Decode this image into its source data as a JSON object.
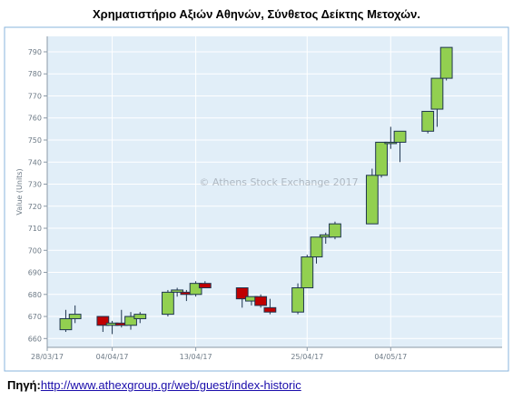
{
  "title": "Χρηματιστήριο Αξιών Αθηνών, Σύνθετος Δείκτης Μετοχών.",
  "source": {
    "label": "Πηγή:",
    "link_text": "http://www.athexgroup.gr/web/guest/index-historic"
  },
  "colors": {
    "up": "#92d050",
    "down": "#c00000",
    "stroke": "#1f3550",
    "plot_bg": "#e1eef8",
    "grid": "#ffffff"
  },
  "chart_data": {
    "type": "candlestick",
    "title": "",
    "xlabel": "",
    "ylabel": "Value (Units)",
    "watermark": "© Athens Stock Exchange 2017",
    "ylim": [
      656,
      797
    ],
    "yticks": [
      660,
      670,
      680,
      690,
      700,
      710,
      720,
      730,
      740,
      750,
      760,
      770,
      780,
      790
    ],
    "xlim": [
      "2017-03-28",
      "2017-05-16"
    ],
    "xticks": [
      {
        "date": "2017-03-28",
        "label": "28/03/17"
      },
      {
        "date": "2017-04-04",
        "label": "04/04/17"
      },
      {
        "date": "2017-04-13",
        "label": "13/04/17"
      },
      {
        "date": "2017-04-25",
        "label": "25/04/17"
      },
      {
        "date": "2017-05-04",
        "label": "04/05/17"
      }
    ],
    "grid": true,
    "candles": [
      {
        "date": "2017-03-30",
        "open": 664,
        "high": 673,
        "low": 663,
        "close": 669
      },
      {
        "date": "2017-03-31",
        "open": 669,
        "high": 675,
        "low": 667,
        "close": 671
      },
      {
        "date": "2017-04-03",
        "open": 670,
        "high": 670,
        "low": 663,
        "close": 666
      },
      {
        "date": "2017-04-04",
        "open": 666,
        "high": 668,
        "low": 662,
        "close": 667
      },
      {
        "date": "2017-04-05",
        "open": 667,
        "high": 673,
        "low": 665,
        "close": 666
      },
      {
        "date": "2017-04-06",
        "open": 666,
        "high": 672,
        "low": 664,
        "close": 670
      },
      {
        "date": "2017-04-07",
        "open": 669,
        "high": 672,
        "low": 667,
        "close": 671
      },
      {
        "date": "2017-04-10",
        "open": 671,
        "high": 682,
        "low": 670,
        "close": 681
      },
      {
        "date": "2017-04-11",
        "open": 681,
        "high": 683,
        "low": 679,
        "close": 682
      },
      {
        "date": "2017-04-12",
        "open": 681,
        "high": 682,
        "low": 677,
        "close": 680
      },
      {
        "date": "2017-04-13",
        "open": 680,
        "high": 686,
        "low": 679,
        "close": 685
      },
      {
        "date": "2017-04-14",
        "open": 685,
        "high": 686,
        "low": 683,
        "close": 683
      },
      {
        "date": "2017-04-18",
        "open": 683,
        "high": 683,
        "low": 674,
        "close": 678
      },
      {
        "date": "2017-04-19",
        "open": 677,
        "high": 679,
        "low": 675,
        "close": 679
      },
      {
        "date": "2017-04-20",
        "open": 679,
        "high": 680,
        "low": 674,
        "close": 675
      },
      {
        "date": "2017-04-21",
        "open": 674,
        "high": 678,
        "low": 671,
        "close": 672
      },
      {
        "date": "2017-04-24",
        "open": 672,
        "high": 685,
        "low": 671,
        "close": 683
      },
      {
        "date": "2017-04-25",
        "open": 683,
        "high": 698,
        "low": 683,
        "close": 697
      },
      {
        "date": "2017-04-26",
        "open": 697,
        "high": 706,
        "low": 694,
        "close": 706
      },
      {
        "date": "2017-04-27",
        "open": 706,
        "high": 708,
        "low": 703,
        "close": 707
      },
      {
        "date": "2017-04-28",
        "open": 706,
        "high": 713,
        "low": 705,
        "close": 712
      },
      {
        "date": "2017-05-02",
        "open": 712,
        "high": 737,
        "low": 712,
        "close": 734
      },
      {
        "date": "2017-05-03",
        "open": 734,
        "high": 749,
        "low": 733,
        "close": 749
      },
      {
        "date": "2017-05-04",
        "open": 749,
        "high": 756,
        "low": 746,
        "close": 749
      },
      {
        "date": "2017-05-05",
        "open": 749,
        "high": 754,
        "low": 740,
        "close": 754
      },
      {
        "date": "2017-05-08",
        "open": 754,
        "high": 763,
        "low": 753,
        "close": 763
      },
      {
        "date": "2017-05-09",
        "open": 764,
        "high": 778,
        "low": 756,
        "close": 778
      },
      {
        "date": "2017-05-10",
        "open": 778,
        "high": 792,
        "low": 777,
        "close": 792
      }
    ]
  }
}
